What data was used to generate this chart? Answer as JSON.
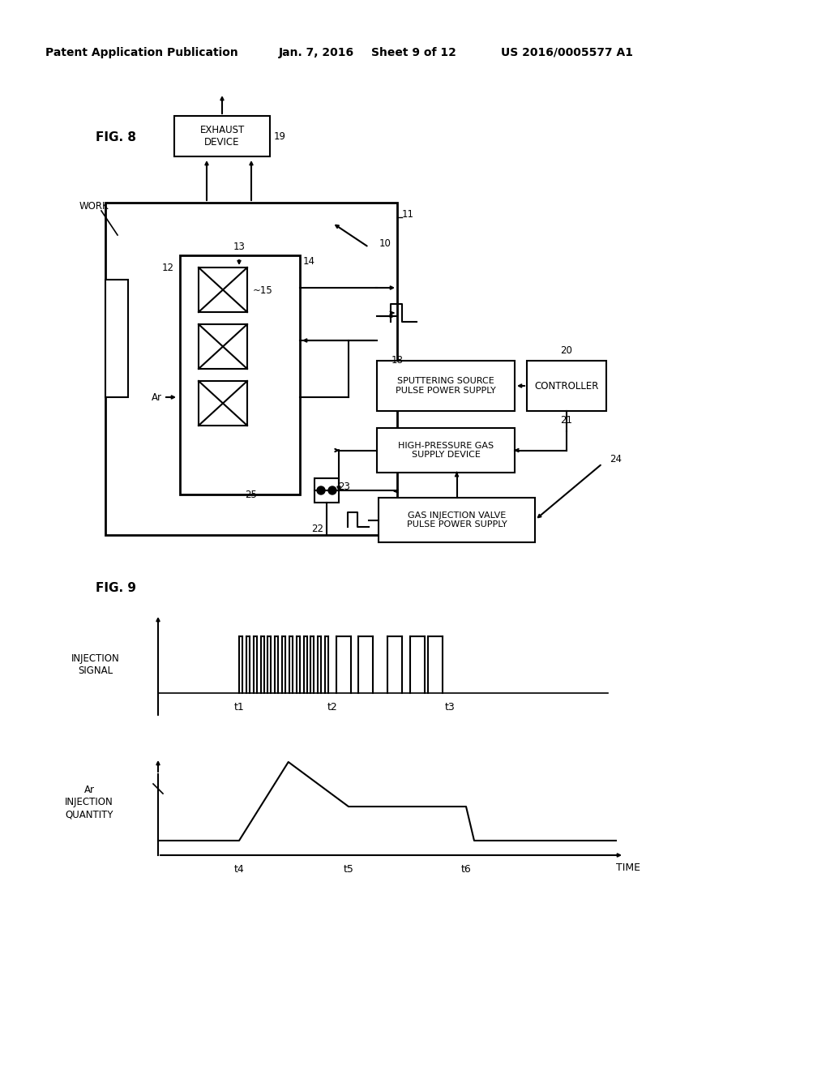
{
  "bg_color": "#ffffff",
  "header_text": "Patent Application Publication",
  "header_date": "Jan. 7, 2016",
  "header_sheet": "Sheet 9 of 12",
  "header_patent": "US 2016/0005577 A1",
  "fig8_label": "FIG. 8",
  "fig9_label": "FIG. 9",
  "exhaust_device": "EXHAUST\nDEVICE",
  "sputtering": "SPUTTERING SOURCE\nPULSE POWER SUPPLY",
  "controller": "CONTROLLER",
  "high_pressure": "HIGH-PRESSURE GAS\nSUPPLY DEVICE",
  "gas_injection": "GAS INJECTION VALVE\nPULSE POWER SUPPLY",
  "injection_signal": "INJECTION\nSIGNAL",
  "ar_injection": "Ar\nINJECTION\nQUANTITY",
  "time_label": "TIME"
}
